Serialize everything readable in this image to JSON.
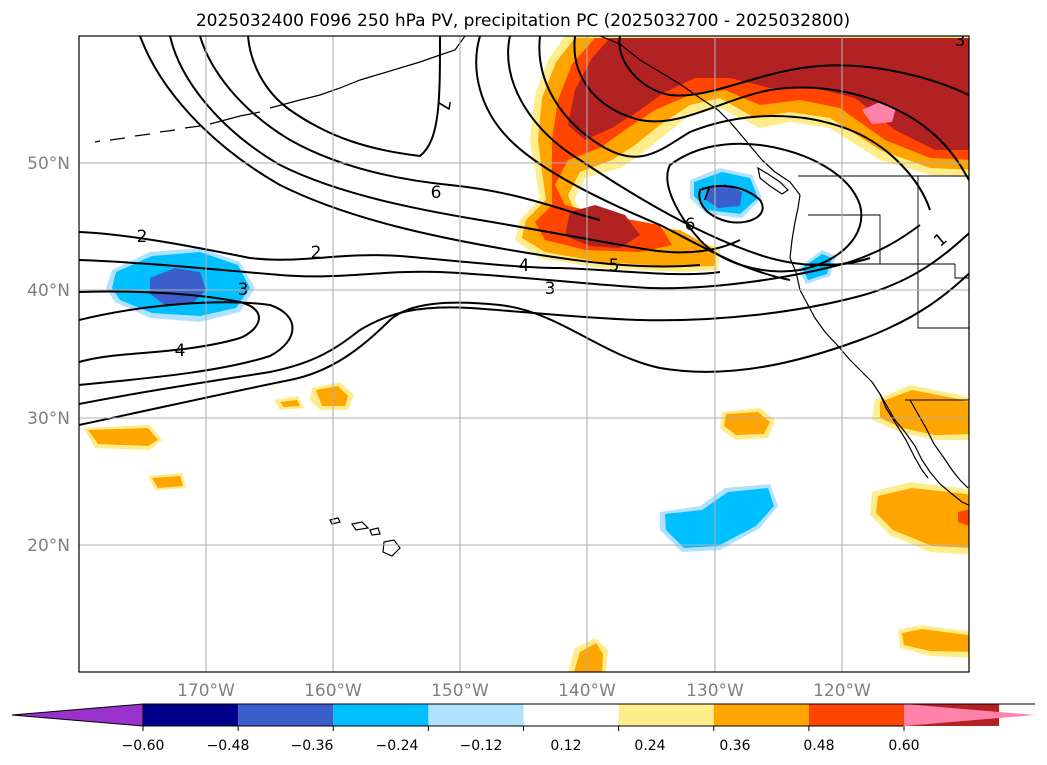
{
  "title": "2025032400 F096 250 hPa PV, precipitation PC (2025032700 - 2025032800)",
  "map": {
    "projection": "plate-carree",
    "lon_range": [
      -180,
      -110
    ],
    "lat_range": [
      10,
      60
    ],
    "lat_ticks": [
      "50°N",
      "40°N",
      "30°N",
      "20°N"
    ],
    "lon_ticks": [
      "170°W",
      "160°W",
      "150°W",
      "140°W",
      "130°W",
      "120°W"
    ],
    "grid": true,
    "pv_contour_labels": [
      "2",
      "2",
      "3",
      "3",
      "4",
      "4",
      "5",
      "6",
      "6",
      "7",
      "7",
      "1",
      "3"
    ]
  },
  "colorbar": {
    "orientation": "horizontal",
    "extend": "both",
    "tick_labels": [
      "−0.60",
      "−0.48",
      "−0.36",
      "−0.24",
      "−0.12",
      "0.12",
      "0.24",
      "0.36",
      "0.48",
      "0.60"
    ],
    "colors": [
      "#9932cc",
      "#00008b",
      "#3a5fcd",
      "#00bfff",
      "#b0e2ff",
      "#ffffff",
      "#ffec8b",
      "#ffa500",
      "#ff4500",
      "#b22222",
      "#ff82ab"
    ]
  }
}
